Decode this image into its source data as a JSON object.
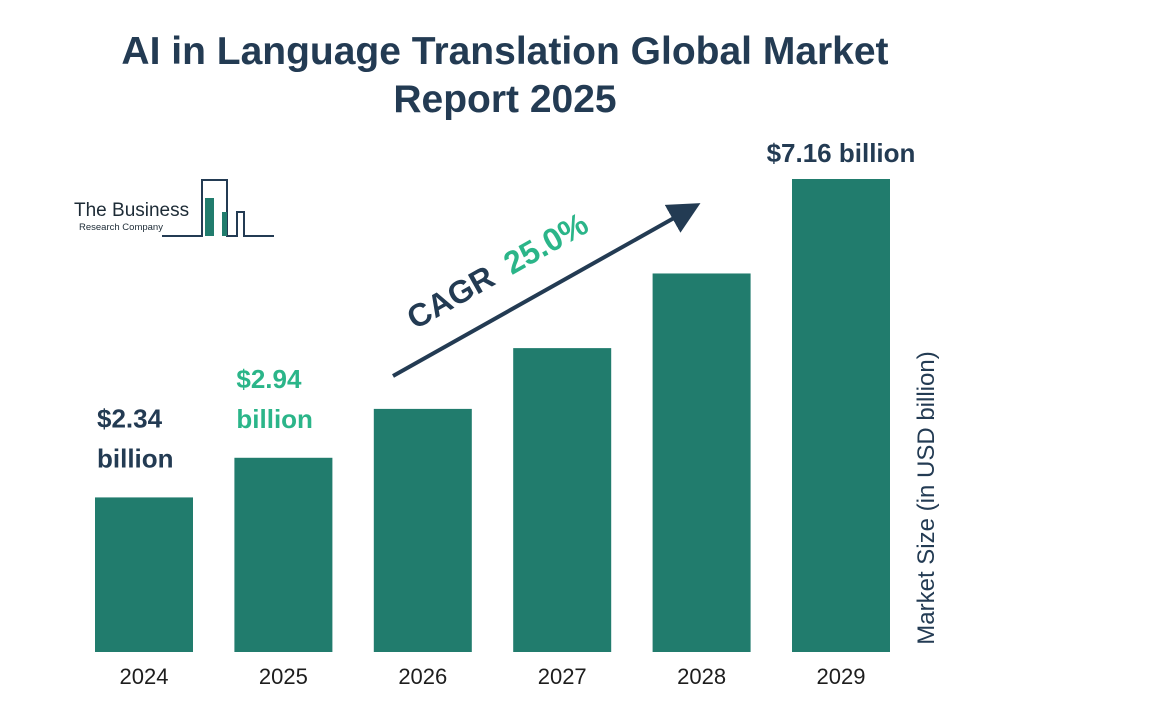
{
  "title": "AI in Language Translation Global Market Report 2025",
  "logo": {
    "name": "The Business",
    "sub": "Research Company"
  },
  "chart_data": {
    "type": "bar",
    "title": "AI in Language Translation Global Market Report 2025",
    "categories": [
      "2024",
      "2025",
      "2026",
      "2027",
      "2028",
      "2029"
    ],
    "values": [
      2.34,
      2.94,
      3.68,
      4.6,
      5.73,
      7.16
    ],
    "value_labels": [
      "$2.34 billion",
      "$2.94 billion",
      "",
      "",
      "",
      "$7.16 billion"
    ],
    "ylabel": "Market Size (in USD billion)",
    "xlabel": "",
    "cagr_label": "CAGR",
    "cagr_value": "25.0%",
    "colors": {
      "bar": "#217c6d",
      "label_dark": "#233b53",
      "label_highlight": "#2bb589",
      "arrow": "#233b53"
    }
  }
}
